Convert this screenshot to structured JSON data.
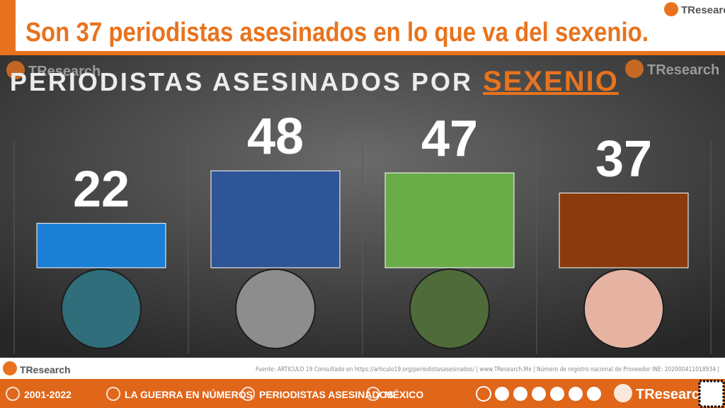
{
  "headline": "Son 37 periodistas asesinados en lo que va del sexenio.",
  "brand": "TResearch",
  "chart_data": {
    "type": "bar",
    "title": "PERIODISTAS ASESINADOS POR",
    "title_highlight": "SEXENIO",
    "categories": [
      null,
      null,
      null,
      null
    ],
    "values": [
      22,
      48,
      47,
      37
    ],
    "colors": [
      "#1b7fd6",
      "#2d5597",
      "#6aad48",
      "#8a3a0c"
    ],
    "ylim": [
      0,
      60
    ]
  },
  "source": "Fuente: ARTICULO 19 Consultado en https://articulo19.org/periodistasasesinados/  |  www.TResearch.Mx  |  Número de registro nacional de Proveedor INE: 202000411018934  |",
  "footer_nav": [
    "2001-2022",
    "LA GUERRA EN NÚMEROS",
    "PERIODISTAS ASESINADOS",
    "MÉXICO"
  ]
}
